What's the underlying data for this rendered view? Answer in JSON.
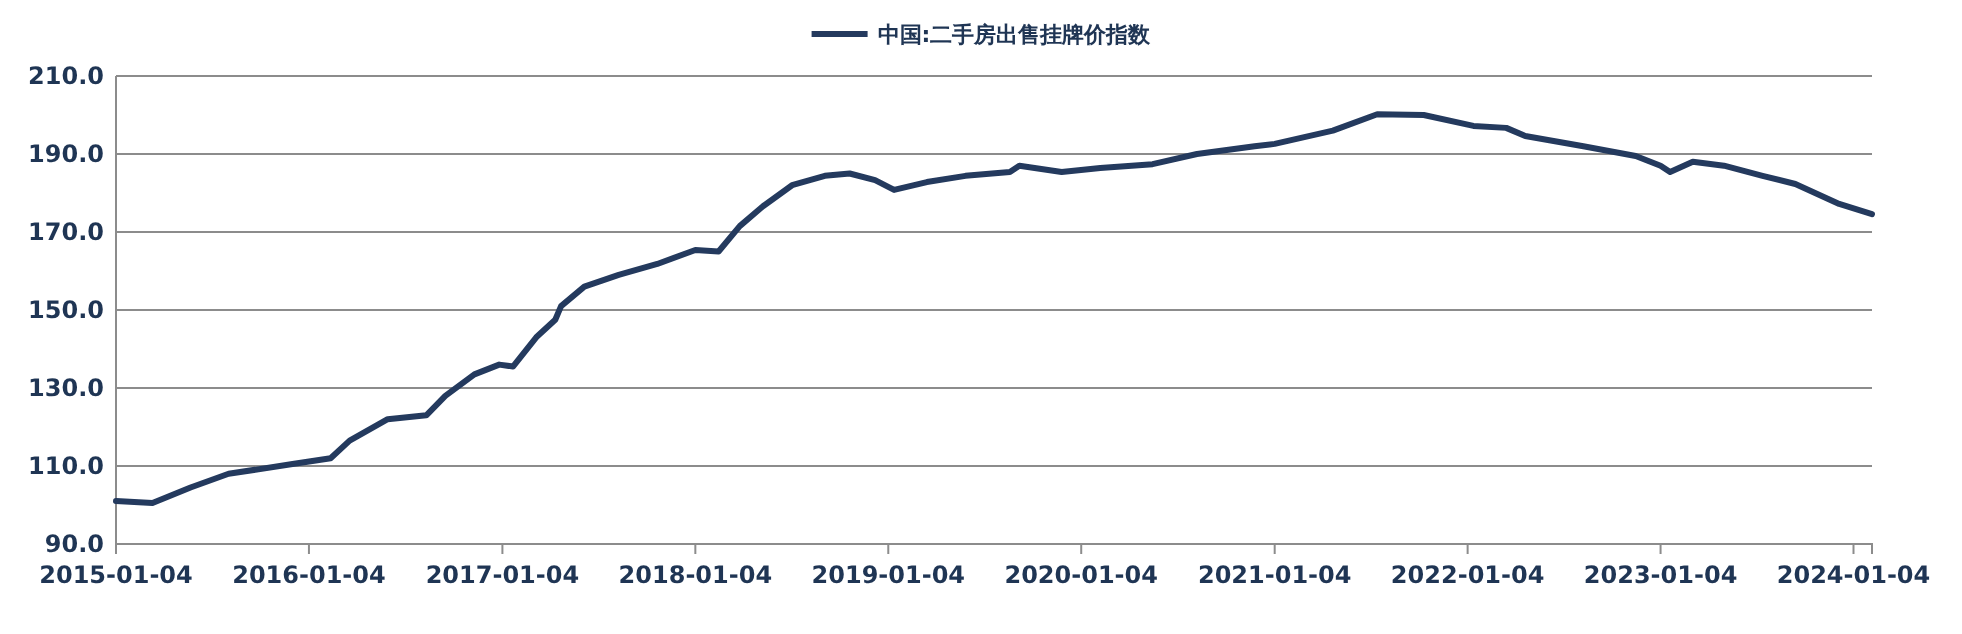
{
  "chart_data": {
    "type": "line",
    "legend": "top",
    "grid": "y",
    "line_style": "solid",
    "marker": "none",
    "x": [
      "2015-01-04",
      "2015-03-14",
      "2015-05-25",
      "2015-08-05",
      "2015-12-04",
      "2016-02-14",
      "2016-03-21",
      "2016-06-01",
      "2016-08-13",
      "2016-09-18",
      "2016-11-12",
      "2016-12-29",
      "2017-01-24",
      "2017-03-09",
      "2017-04-14",
      "2017-04-25",
      "2017-06-08",
      "2017-08-12",
      "2017-10-24",
      "2018-01-04",
      "2018-02-17",
      "2018-03-29",
      "2018-05-12",
      "2018-07-06",
      "2018-09-06",
      "2018-10-23",
      "2018-12-10",
      "2019-01-15",
      "2019-03-18",
      "2019-05-30",
      "2019-08-22",
      "2019-09-09",
      "2019-11-28",
      "2020-02-09",
      "2020-05-18",
      "2020-08-10",
      "2020-11-27",
      "2021-01-04",
      "2021-04-24",
      "2021-07-17",
      "2021-10-13",
      "2022-01-15",
      "2022-03-18",
      "2022-04-23",
      "2022-08-11",
      "2022-11-18",
      "2023-01-04",
      "2023-01-22",
      "2023-03-06",
      "2023-05-04",
      "2023-07-16",
      "2023-09-16",
      "2023-12-08",
      "2024-02-08"
    ],
    "series": [
      {
        "name": "中国:二手房出售挂牌价指数",
        "color": "#243a5e",
        "values": [
          101,
          100.5,
          104.5,
          108,
          110.5,
          112,
          116.5,
          122,
          123,
          128,
          133.5,
          136,
          135.5,
          143,
          147.5,
          151,
          156,
          159,
          161.8,
          165.4,
          165,
          171.5,
          176.6,
          182,
          184.4,
          185,
          183.3,
          180.8,
          182.8,
          184.4,
          185.4,
          187,
          185.4,
          186.4,
          187.4,
          190,
          192,
          192.6,
          196,
          200.2,
          200,
          197.2,
          196.7,
          194.6,
          192,
          189.5,
          187,
          185.4,
          188,
          187,
          184.4,
          182.3,
          177.2,
          174.6
        ]
      }
    ],
    "xlim": [
      "2015-01-04",
      "2024-02-08"
    ],
    "xticks": [
      "2015-01-04",
      "2016-01-04",
      "2017-01-04",
      "2018-01-04",
      "2019-01-04",
      "2020-01-04",
      "2021-01-04",
      "2022-01-04",
      "2023-01-04",
      "2024-01-04"
    ],
    "ylim": [
      90,
      210
    ],
    "yticks": [
      {
        "value": 90,
        "label": "90.0"
      },
      {
        "value": 110,
        "label": "110.0"
      },
      {
        "value": 130,
        "label": "130.0"
      },
      {
        "value": 150,
        "label": "150.0"
      },
      {
        "value": 170,
        "label": "170.0"
      },
      {
        "value": 190,
        "label": "190.0"
      },
      {
        "value": 210,
        "label": "210.0"
      }
    ]
  }
}
